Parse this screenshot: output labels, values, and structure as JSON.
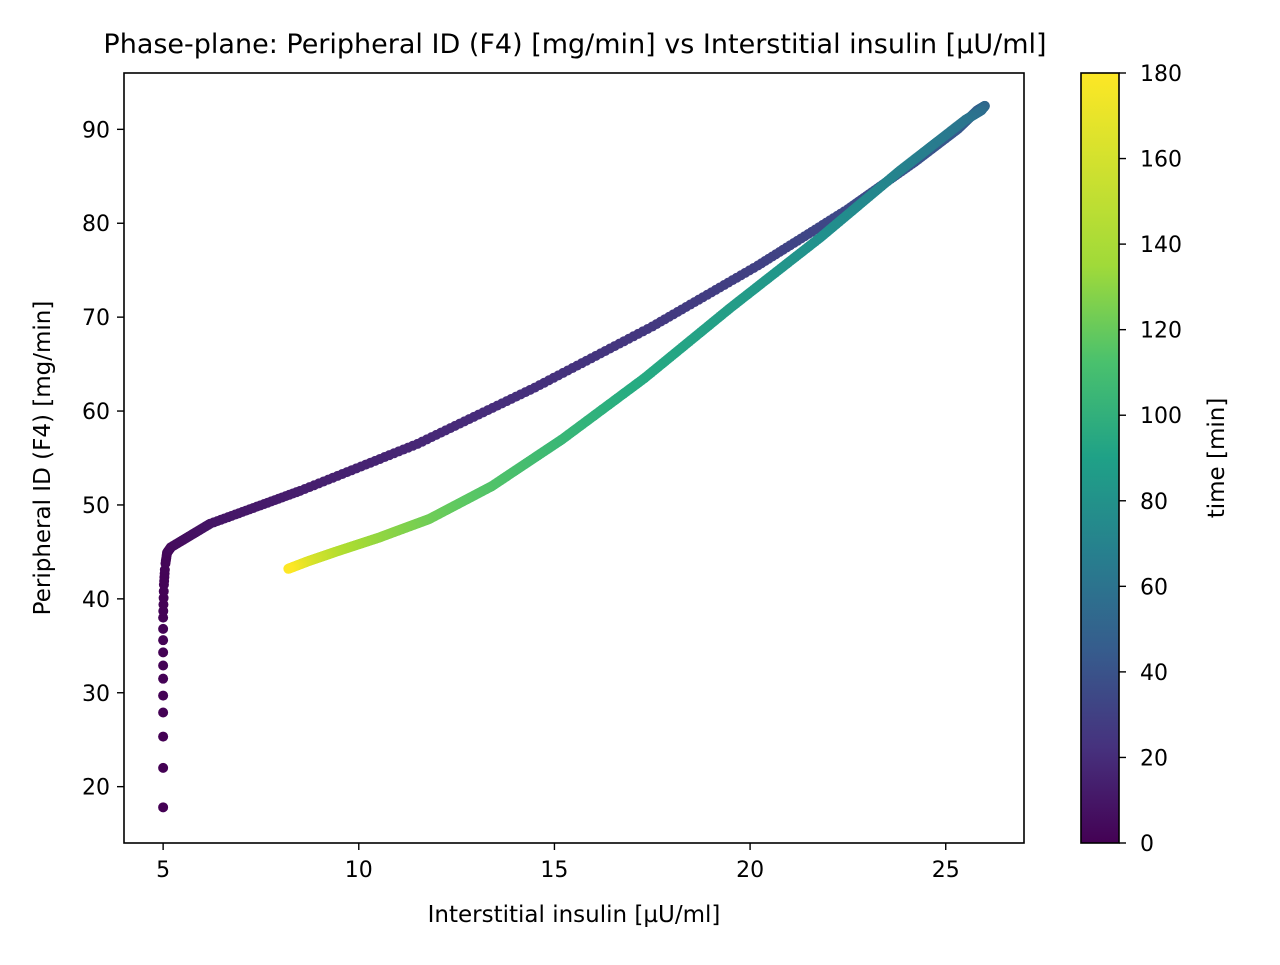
{
  "chart_data": {
    "type": "scatter",
    "title": "Phase-plane: Peripheral ID (F4) [mg/min] vs Interstitial insulin [µU/ml]",
    "xlabel": "Interstitial insulin [µU/ml]",
    "ylabel": "Peripheral ID (F4) [mg/min]",
    "xlim": [
      4,
      27
    ],
    "ylim": [
      14,
      96
    ],
    "x_ticks": [
      5,
      10,
      15,
      20,
      25
    ],
    "y_ticks": [
      20,
      30,
      40,
      50,
      60,
      70,
      80,
      90
    ],
    "grid": false,
    "legend": "none",
    "colorbar": {
      "label": "time [min]",
      "range": [
        0,
        180
      ],
      "ticks": [
        0,
        20,
        40,
        60,
        80,
        100,
        120,
        140,
        160,
        180
      ],
      "colormap": "viridis"
    },
    "trajectory": {
      "time": [
        0,
        0.1,
        0.25,
        0.5,
        0.75,
        1,
        1.5,
        2,
        3,
        5,
        10,
        15,
        20,
        25,
        30,
        35,
        40,
        45,
        50,
        55,
        60,
        65,
        70,
        80,
        90,
        100,
        110,
        120,
        130,
        140,
        150,
        160,
        170,
        180
      ],
      "x": [
        5.0,
        5.0,
        5.0,
        5.0,
        5.0,
        5.0,
        5.02,
        5.05,
        5.1,
        5.2,
        6.2,
        8.5,
        11.5,
        14.5,
        17.5,
        20.2,
        22.5,
        24.2,
        25.3,
        25.8,
        26.0,
        25.9,
        25.5,
        23.8,
        21.8,
        19.5,
        17.3,
        15.2,
        13.4,
        11.8,
        10.5,
        9.4,
        8.7,
        8.2
      ],
      "y": [
        17.8,
        22.0,
        27.0,
        31.5,
        35.0,
        38.0,
        41.5,
        43.5,
        44.9,
        45.5,
        48.0,
        51.5,
        56.5,
        62.5,
        69.0,
        75.5,
        81.5,
        86.5,
        90.0,
        92.0,
        92.5,
        92.0,
        91.0,
        85.5,
        78.5,
        71.0,
        63.5,
        57.0,
        52.0,
        48.5,
        46.5,
        45.0,
        44.0,
        43.2
      ]
    }
  }
}
